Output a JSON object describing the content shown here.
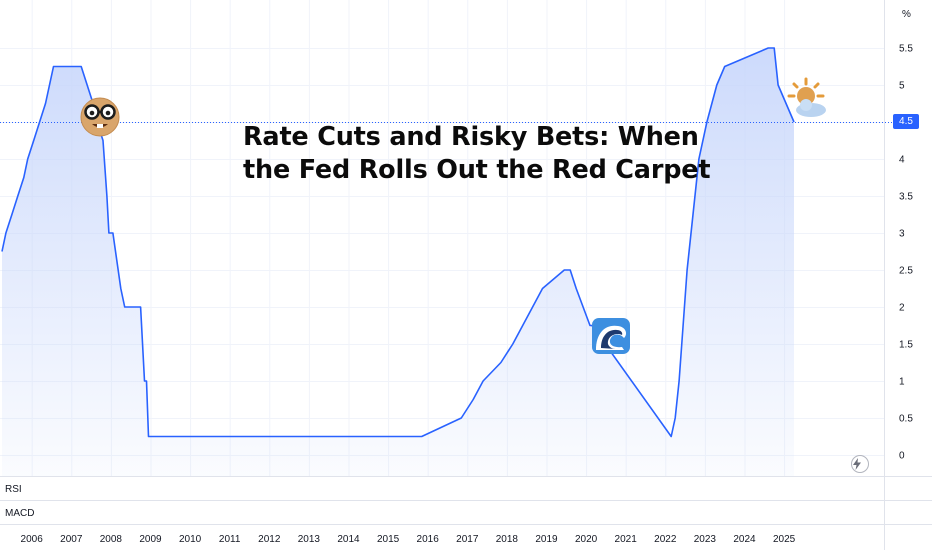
{
  "title": "Rate Cuts and Risky Bets: When\nthe Fed Rolls Out the Red Carpet",
  "price_badge": "4.5",
  "unit": "%",
  "panes": {
    "rsi": "RSI",
    "macd": "MACD"
  },
  "icons": [
    "nerd-face-emoji-icon",
    "wave-emoji-icon",
    "sun-behind-cloud-emoji-icon",
    "lightning-bolt-icon"
  ],
  "colors": {
    "line": "#2962ff",
    "fill_top": "#c7d6fb",
    "badge": "#2962ff",
    "current_line": "#2962ff"
  },
  "chart_data": {
    "type": "area",
    "title": "",
    "xlabel": "",
    "ylabel": "",
    "ylim": [
      -0.1,
      5.9
    ],
    "yticks": [
      "0",
      "0.5",
      "1",
      "1.5",
      "2",
      "2.5",
      "3",
      "3.5",
      "4",
      "4.5",
      "5",
      "5.5"
    ],
    "xticks": [
      "2006",
      "2007",
      "2008",
      "2009",
      "2010",
      "2011",
      "2012",
      "2013",
      "2014",
      "2015",
      "2016",
      "2017",
      "2018",
      "2019",
      "2020",
      "2021",
      "2022",
      "2023",
      "2024",
      "2025"
    ],
    "current_value": 4.5,
    "grid": true,
    "series": [
      {
        "x": [
          2005.3,
          2005.4,
          2005.55,
          2005.7,
          2005.85,
          2005.95,
          2006.1,
          2006.25,
          2006.4,
          2006.5,
          2006.6,
          2006.7,
          2007.3,
          2007.6,
          2007.7,
          2007.85,
          2007.95,
          2008.0,
          2008.1,
          2008.3,
          2008.4,
          2008.5,
          2008.8,
          2008.9,
          2008.95,
          2009.0,
          2015.9,
          2016.9,
          2017.2,
          2017.45,
          2017.9,
          2018.2,
          2018.45,
          2018.7,
          2018.95,
          2019.5,
          2019.65,
          2019.8,
          2020.15,
          2020.2,
          2022.2,
          2022.3,
          2022.4,
          2022.5,
          2022.6,
          2022.75,
          2022.9,
          2023.1,
          2023.35,
          2023.55,
          2024.65,
          2024.8,
          2024.9,
          2025.3
        ],
        "y": [
          2.75,
          3.0,
          3.25,
          3.5,
          3.75,
          4.0,
          4.25,
          4.5,
          4.75,
          5.0,
          5.25,
          5.25,
          5.25,
          4.75,
          4.5,
          4.25,
          3.5,
          3.0,
          3.0,
          2.25,
          2.0,
          2.0,
          2.0,
          1.0,
          1.0,
          0.25,
          0.25,
          0.5,
          0.75,
          1.0,
          1.25,
          1.5,
          1.75,
          2.0,
          2.25,
          2.5,
          2.5,
          2.25,
          1.75,
          1.75,
          0.25,
          0.5,
          1.0,
          1.75,
          2.5,
          3.25,
          4.0,
          4.5,
          5.0,
          5.25,
          5.5,
          5.5,
          5.0,
          4.5
        ]
      }
    ]
  }
}
